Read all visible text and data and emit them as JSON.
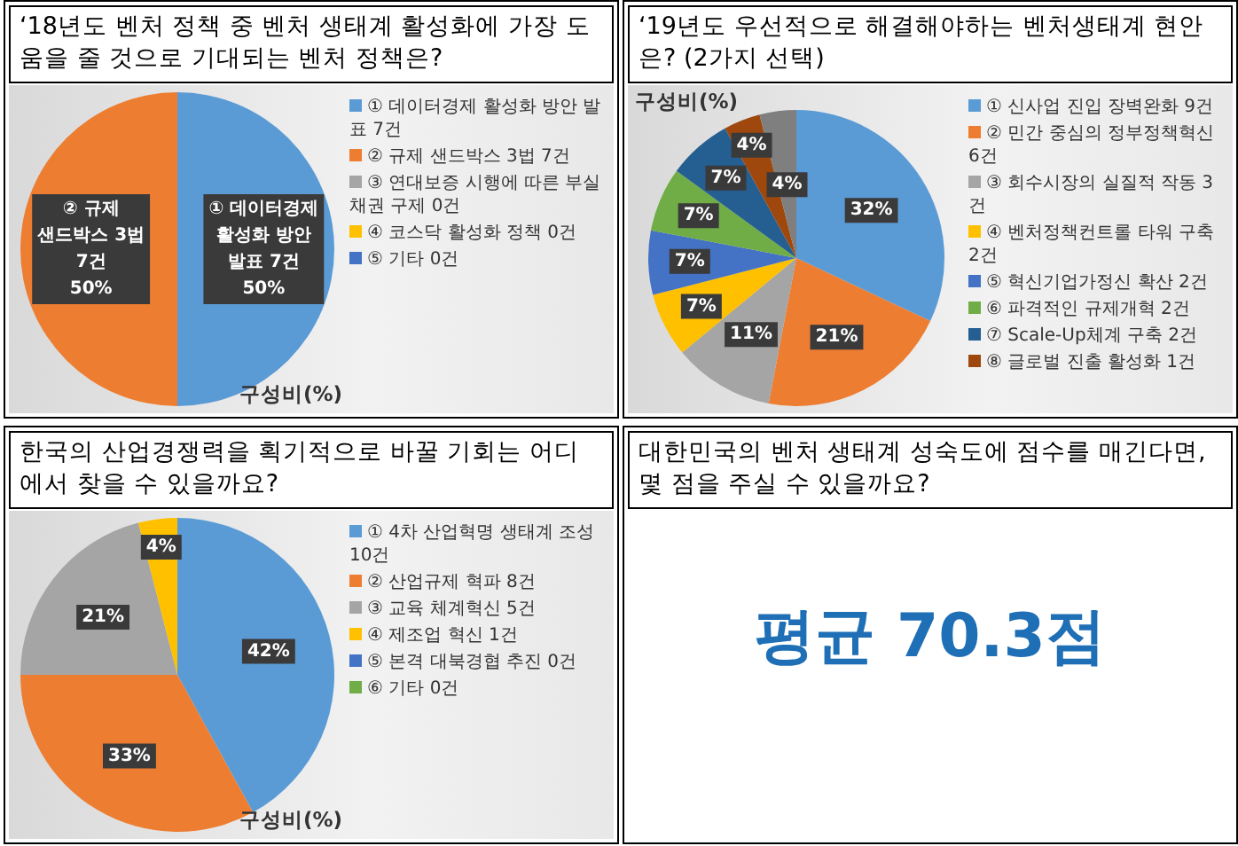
{
  "chart_data": [
    {
      "type": "pie",
      "title": "‘18년도 벤처 정책 중 벤처 생태계 활성화에 가장 도움을 줄 것으로 기대되는 벤처 정책은?",
      "categories": [
        "① 데이터경제 활성화 방안 발표 7건",
        "② 규제 샌드박스 3법 7건",
        "③ 연대보증 시행에 따른 부실채권 구제 0건",
        "④ 코스닥 활성화 정책 0건",
        "⑤ 기타 0건"
      ],
      "values": [
        50,
        50,
        0,
        0,
        0
      ],
      "colors": [
        "#5b9bd5",
        "#ed7d31",
        "#a5a5a5",
        "#ffc000",
        "#4472c4"
      ],
      "value_labels": [
        "① 데이터경제\n활성화 방안\n발표 7건\n50%",
        "② 규제\n샌드박스 3법\n7건\n50%",
        null,
        null,
        null
      ],
      "legend": "right",
      "annotations": [
        "구성비(%)"
      ]
    },
    {
      "type": "pie",
      "title": "‘19년도 우선적으로 해결해야하는 벤처생태계 현안은? (2가지 선택)",
      "categories": [
        "① 신사업 진입 장벽완화 9건",
        "② 민간 중심의 정부정책혁신 6건",
        "③ 회수시장의 실질적 작동 3건",
        "④ 벤처정책컨트롤 타워 구축 2건",
        "⑤ 혁신기업가정신 확산 2건",
        "⑥ 파격적인 규제개혁 2건",
        "⑦ Scale-Up체계 구축 2건",
        "⑧ 글로벌 진출 활성화 1건",
        null
      ],
      "values": [
        32,
        21,
        11,
        7,
        7,
        7,
        7,
        4,
        4
      ],
      "colors": [
        "#5b9bd5",
        "#ed7d31",
        "#a5a5a5",
        "#ffc000",
        "#4472c4",
        "#70ad47",
        "#255e91",
        "#9e480e",
        "#7f7f7f"
      ],
      "value_labels": [
        "32%",
        "21%",
        "11%",
        "7%",
        "7%",
        "7%",
        "7%",
        "4%",
        "4%"
      ],
      "legend": "right",
      "annotations": [
        "구성비(%)"
      ]
    },
    {
      "type": "pie",
      "title": "한국의 산업경쟁력을 획기적으로 바꿀 기회는 어디에서 찾을 수 있을까요?",
      "categories": [
        "① 4차 산업혁명 생태계 조성 10건",
        "② 산업규제 혁파 8건",
        "③ 교육 체계혁신 5건",
        "④ 제조업 혁신 1건",
        "⑤ 본격 대북경협 추진 0건",
        "⑥ 기타 0건"
      ],
      "values": [
        42,
        33,
        21,
        4,
        0,
        0
      ],
      "colors": [
        "#5b9bd5",
        "#ed7d31",
        "#a5a5a5",
        "#ffc000",
        "#4472c4",
        "#70ad47"
      ],
      "value_labels": [
        "42%",
        "33%",
        "21%",
        "4%",
        null,
        null
      ],
      "legend": "right",
      "annotations": [
        "구성비(%)"
      ]
    },
    {
      "type": "other",
      "title": "대한민국의 벤처 생태계 성숙도에 점수를 매긴다면, 몇 점을 주실 수 있을까요?",
      "annotations": [
        "평균 70.3점"
      ]
    }
  ]
}
